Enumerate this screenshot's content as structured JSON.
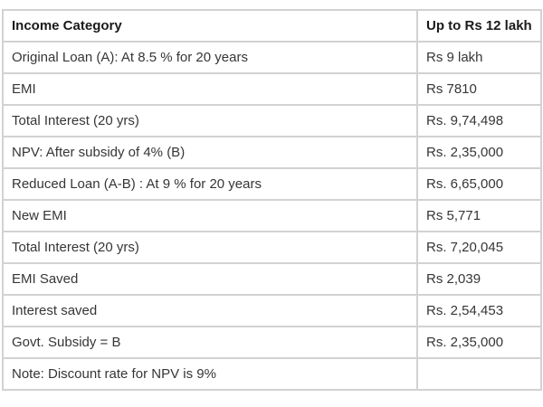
{
  "table": {
    "header": {
      "col1": "Income Category",
      "col2": "Up to Rs 12 lakh"
    },
    "rows": [
      {
        "label": "Original Loan (A): At 8.5 % for 20 years",
        "value": "Rs 9 lakh"
      },
      {
        "label": "EMI",
        "value": "Rs 7810"
      },
      {
        "label": "Total Interest (20 yrs)",
        "value": "Rs. 9,74,498"
      },
      {
        "label": "NPV: After subsidy of 4% (B)",
        "value": "Rs. 2,35,000"
      },
      {
        "label": "Reduced Loan (A-B) : At 9 % for 20 years",
        "value": "Rs. 6,65,000"
      },
      {
        "label": "New EMI",
        "value": "Rs 5,771"
      },
      {
        "label": "Total Interest (20 yrs)",
        "value": "Rs. 7,20,045"
      },
      {
        "label": "EMI Saved",
        "value": "Rs 2,039"
      },
      {
        "label": "Interest saved",
        "value": "Rs. 2,54,453"
      },
      {
        "label": "Govt. Subsidy = B",
        "value": "Rs. 2,35,000"
      },
      {
        "label": "Note: Discount rate for NPV is 9%",
        "value": ""
      }
    ]
  },
  "colors": {
    "border": "#d2d2d2",
    "text": "#363636",
    "header_text": "#1a1a1a",
    "background": "#ffffff"
  },
  "chart_data": {
    "type": "table",
    "title": "Home loan subsidy impact — income category up to Rs 12 lakh",
    "columns": [
      "Income Category",
      "Up to Rs 12 lakh"
    ],
    "rows": [
      [
        "Original Loan (A): At 8.5 % for 20 years",
        "Rs 9 lakh"
      ],
      [
        "EMI",
        "Rs 7810"
      ],
      [
        "Total Interest (20 yrs)",
        "Rs. 9,74,498"
      ],
      [
        "NPV: After subsidy of 4% (B)",
        "Rs. 2,35,000"
      ],
      [
        "Reduced Loan (A-B) : At 9 % for 20 years",
        "Rs. 6,65,000"
      ],
      [
        "New EMI",
        "Rs 5,771"
      ],
      [
        "Total Interest (20 yrs)",
        "Rs. 7,20,045"
      ],
      [
        "EMI Saved",
        "Rs 2,039"
      ],
      [
        "Interest saved",
        "Rs. 2,54,453"
      ],
      [
        "Govt. Subsidy = B",
        "Rs. 2,35,000"
      ],
      [
        "Note: Discount rate for NPV is 9%",
        ""
      ]
    ],
    "annotations": [
      "Note: Discount rate for NPV is 9%"
    ],
    "original_loan_rs": 900000,
    "emi_rs": 7810,
    "total_interest_original_rs": 974498,
    "npv_subsidy_rs": 235000,
    "reduced_loan_rs": 665000,
    "new_emi_rs": 5771,
    "total_interest_reduced_rs": 720045,
    "emi_saved_rs": 2039,
    "interest_saved_rs": 254453,
    "govt_subsidy_rs": 235000,
    "discount_rate_pct": 9
  }
}
